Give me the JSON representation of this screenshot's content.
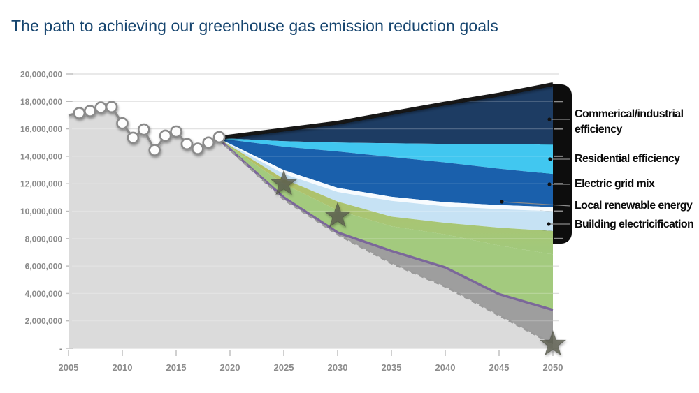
{
  "title": {
    "text": "The path to achieving our greenhouse gas emission reduction goals",
    "color": "#16456F"
  },
  "chart_data": {
    "type": "area",
    "title": "The path to achieving our greenhouse gas emission reduction goals",
    "xlabel": "",
    "ylabel": "",
    "x_axis": {
      "ticks": [
        "2005",
        "2010",
        "2015",
        "2020",
        "2025",
        "2030",
        "2035",
        "2040",
        "2045",
        "2050"
      ],
      "min": 2005,
      "max": 2050
    },
    "y_axis": {
      "ticks": [
        "20,000,000",
        "18,000,000",
        "16,000,000",
        "14,000,000",
        "12,000,000",
        "10,000,000",
        "8,000,000",
        "6,000,000",
        "4,000,000",
        "2,000,000",
        "-"
      ],
      "min": 0,
      "max": 20000000
    },
    "grid": true,
    "historical": {
      "name": "historical-emissions",
      "line_color": "#8A8A8A",
      "fill_color": "#DBDBDB",
      "marker_fill": "#FDFDFD",
      "points": [
        [
          2005,
          17000000
        ],
        [
          2006,
          17150000
        ],
        [
          2007,
          17300000
        ],
        [
          2008,
          17550000
        ],
        [
          2009,
          17600000
        ],
        [
          2010,
          16400000
        ],
        [
          2011,
          15350000
        ],
        [
          2012,
          15950000
        ],
        [
          2013,
          14450000
        ],
        [
          2014,
          15500000
        ],
        [
          2015,
          15800000
        ],
        [
          2016,
          14900000
        ],
        [
          2017,
          14550000
        ],
        [
          2018,
          15000000
        ],
        [
          2019,
          15400000
        ]
      ]
    },
    "projection": {
      "years": [
        2019,
        2025,
        2030,
        2035,
        2040,
        2045,
        2050
      ],
      "boundaries": {
        "bau_top_line": [
          15350000,
          15950000,
          16450000,
          17150000,
          17850000,
          18500000,
          19250000
        ],
        "commercial_bottom": [
          15330000,
          15100000,
          15000000,
          14950000,
          14900000,
          14870000,
          14850000
        ],
        "residential_bottom": [
          15310000,
          14700000,
          14350000,
          13950000,
          13550000,
          13100000,
          12700000
        ],
        "grid_mix_bottom": [
          15290000,
          13000000,
          11700000,
          11050000,
          10650000,
          10450000,
          10300000
        ],
        "local_renew_bottom": [
          15270000,
          12720000,
          11400000,
          10750000,
          10350000,
          10150000,
          10000000
        ],
        "building_bottom": [
          15250000,
          12350000,
          10700000,
          9600000,
          9150000,
          8800000,
          8550000
        ],
        "olive_bottom": [
          15230000,
          12000000,
          10050000,
          8900000,
          8300000,
          7500000,
          6850000
        ],
        "purple_line": [
          15210000,
          11000000,
          8450000,
          7100000,
          5900000,
          3950000,
          2800000
        ],
        "dashed_target_path": [
          15190000,
          10850000,
          8300000,
          6200000,
          4500000,
          2400000,
          300000
        ]
      },
      "band_names": [
        "commercial-industrial-efficiency",
        "residential-efficiency",
        "electric-grid-mix",
        "local-renewable-energy",
        "building-electrification",
        "transition-gradient-band",
        "remaining-green-band",
        "remaining-gray-band"
      ],
      "band_colors": [
        "#1D3C63",
        "#41C7F0",
        "#1A60AC",
        "#F7FBFE",
        "#C6E2F4",
        "olive-gradient",
        "#A3CA7E",
        "#9E9E9E"
      ]
    },
    "target_stars": [
      [
        2025,
        12000000
      ],
      [
        2030,
        9650000
      ],
      [
        2050,
        300000
      ]
    ],
    "legend": [
      {
        "label": "Commerical/industrial efficiency",
        "color": "#1D3C63"
      },
      {
        "label": "Residential efficiency",
        "color": "#41C7F0"
      },
      {
        "label": "Electric grid mix",
        "color": "#1A60AC"
      },
      {
        "label": "Local renewable energy",
        "color": "#F7FBFE"
      },
      {
        "label": "Building electricification",
        "color": "#C6E2F4"
      }
    ],
    "style_colors": {
      "gridline": "#DCDCDC",
      "axis_text": "#8C8C8C",
      "bau_line": "#121212",
      "purple_line": "#7B679A",
      "dashed_line": "#9A9A9A",
      "star_fill": "#5C5F50",
      "legend_bar": "#0D0D0D",
      "olive_gradient_top": "#B9BC5E",
      "olive_gradient_bottom": "#A1C97C"
    }
  }
}
